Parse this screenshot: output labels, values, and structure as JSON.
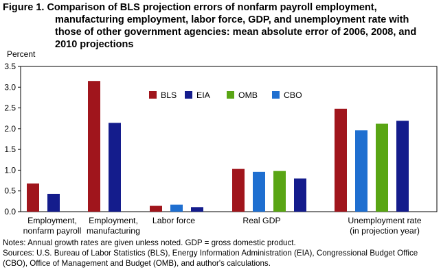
{
  "title": {
    "lines": [
      "Figure 1. Comparison of BLS projection errors of nonfarm payroll employment,",
      "manufacturing employment, labor force, GDP, and unemployment rate with",
      "those of other government agencies: mean absolute error of 2006, 2008, and",
      "2010 projections"
    ]
  },
  "notes": {
    "line1": "Notes: Annual growth rates are given unless noted. GDP = gross domestic product.",
    "line2": "Sources: U.S. Bureau of Labor Statistics (BLS), Energy Information Administration (EIA), Congressional Budget Office",
    "line3": "(CBO), Office of Management and Budget (OMB), and author's calculations."
  },
  "chart_data": {
    "type": "bar",
    "ylabel": "Percent",
    "ylim": [
      0,
      3.5
    ],
    "yticks": [
      "0.0",
      "0.5",
      "1.0",
      "1.5",
      "2.0",
      "2.5",
      "3.0",
      "3.5"
    ],
    "grid": false,
    "legend_position": "top-center",
    "categories": [
      [
        "Employment,",
        "nonfarm payroll"
      ],
      [
        "Employment,",
        "manufacturing"
      ],
      [
        "Labor force"
      ],
      [
        "Real GDP"
      ],
      [
        "Unemployment rate",
        "(in projection year)"
      ]
    ],
    "series": [
      {
        "name": "BLS",
        "color": "#A0151C",
        "values": [
          0.68,
          3.15,
          0.14,
          1.03,
          2.48
        ]
      },
      {
        "name": "EIA",
        "color": "#141C8C",
        "values": [
          0.43,
          2.14,
          0.11,
          0.8,
          2.19
        ]
      },
      {
        "name": "OMB",
        "color": "#59A514",
        "values": [
          null,
          null,
          null,
          0.98,
          2.12
        ]
      },
      {
        "name": "CBO",
        "color": "#1F6FD0",
        "values": [
          null,
          null,
          0.17,
          0.96,
          1.96
        ]
      }
    ]
  }
}
